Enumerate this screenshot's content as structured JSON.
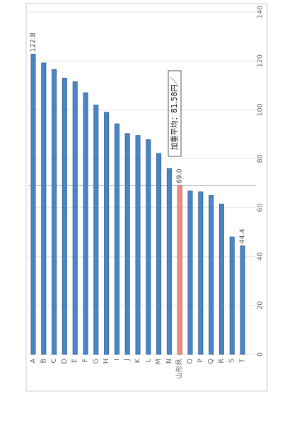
{
  "chart_data": {
    "type": "bar",
    "orientation": "rotated-90-clockwise",
    "categories": [
      "A",
      "B",
      "C",
      "D",
      "E",
      "F",
      "G",
      "H",
      "I",
      "J",
      "K",
      "L",
      "M",
      "N",
      "山形県",
      "O",
      "P",
      "Q",
      "R",
      "S",
      "T"
    ],
    "values": [
      122.8,
      119.2,
      116.5,
      113.0,
      111.5,
      107.0,
      102.0,
      99.0,
      94.3,
      90.3,
      89.5,
      87.8,
      82.2,
      76.0,
      69.0,
      66.8,
      66.5,
      65.0,
      61.5,
      48.0,
      44.4
    ],
    "highlight_category": "山形県",
    "data_labels": [
      {
        "category": "A",
        "text": "122.8"
      },
      {
        "category": "山形県",
        "text": "69.0"
      },
      {
        "category": "T",
        "text": "44.4"
      }
    ],
    "reference_line": {
      "value": 69.0
    },
    "annotation": "加重平均：81.58円／",
    "ylim": [
      0,
      140
    ],
    "yticks": [
      "0",
      "20",
      "40",
      "60",
      "80",
      "100",
      "120",
      "140"
    ],
    "title": "",
    "xlabel": "",
    "ylabel": "",
    "grid": true,
    "colors": {
      "bar": "#4a86c5",
      "bar_edge": "#2f5f94",
      "highlight": "#f08c86",
      "highlight_edge": "#b0504a",
      "grid": "#e4e4e4",
      "reference": "#bbbbbb",
      "frame": "#cccccc"
    }
  }
}
